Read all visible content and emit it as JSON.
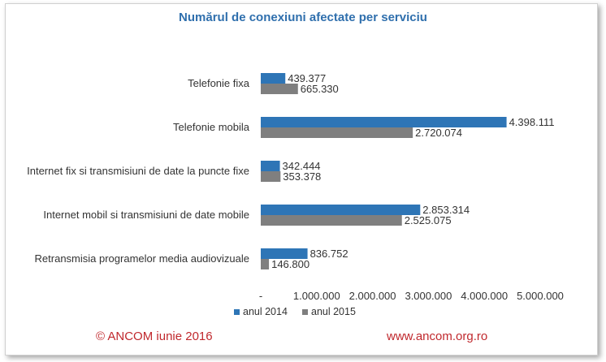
{
  "chart_data": {
    "type": "bar",
    "orientation": "horizontal",
    "title": "Numărul de conexiuni afectate per serviciu",
    "categories": [
      "Telefonie fixa",
      "Telefonie mobila",
      "Internet fix si transmisiuni de date la puncte fixe",
      "Internet mobil si transmisiuni de date mobile",
      "Retransmisia programelor media audiovizuale"
    ],
    "series": [
      {
        "name": "anul 2014",
        "color": "#2e75b6",
        "values": [
          439377,
          4398111,
          342444,
          2853314,
          836752
        ],
        "labels": [
          "439.377",
          "4.398.111",
          "342.444",
          "2.853.314",
          "836.752"
        ]
      },
      {
        "name": "anul 2015",
        "color": "#7f7f7f",
        "values": [
          665330,
          2720074,
          353378,
          2525075,
          146800
        ],
        "labels": [
          "665.330",
          "2.720.074",
          "353.378",
          "2.525.075",
          "146.800"
        ]
      }
    ],
    "xlim": [
      0,
      5000000
    ],
    "xticks": [
      0,
      1000000,
      2000000,
      3000000,
      4000000,
      5000000
    ],
    "xtick_labels": [
      "-",
      "1.000.000",
      "2.000.000",
      "3.000.000",
      "4.000.000",
      "5.000.000"
    ],
    "grid": false,
    "legend_position": "bottom"
  },
  "footer": {
    "copyright": "© ANCOM iunie 2016",
    "website": "www.ancom.org.ro"
  }
}
